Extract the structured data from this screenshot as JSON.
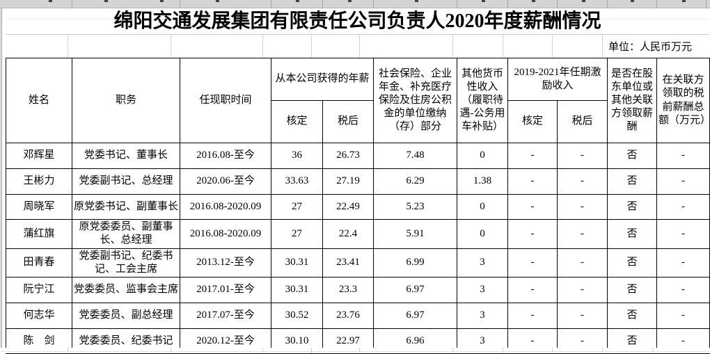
{
  "title": "绵阳交通发展集团有限责任公司负责人2020年度薪酬情况",
  "unit_note": "单位：人民币万元",
  "table": {
    "headers": {
      "name": "姓名",
      "position": "职务",
      "tenure": "任现职时间",
      "company_salary_group": "从本公司获得的年薪",
      "salary_approved": "核定",
      "salary_after_tax": "税后",
      "social_insurance": "社会保险、企业年金、补充医疗保险及住房公积金的单位缴纳（存）部分",
      "other_monetary_income": "其他货币性收入（履职待遇-公务用车补贴）",
      "term_incentive_group": "2019-2021年任期激励收入",
      "incentive_approved": "核定",
      "incentive_after_tax": "税后",
      "shareholder_remuneration": "是否在股东单位或其他关联方领取薪酬",
      "related_party_total": "在关联方领取的税前薪酬总额（万元）"
    },
    "rows": [
      [
        "邓辉星",
        "党委书记、董事长",
        "2016.08-至今",
        "36",
        "26.73",
        "7.48",
        "0",
        "-",
        "-",
        "否",
        "-"
      ],
      [
        "王彬力",
        "党委副书记、总经理",
        "2020.06-至今",
        "33.63",
        "27.19",
        "6.29",
        "1.38",
        "-",
        "-",
        "否",
        "-"
      ],
      [
        "周晓军",
        "原党委书记、副董事长",
        "2016.08-2020.09",
        "27",
        "22.49",
        "5.23",
        "0",
        "-",
        "-",
        "否",
        "-"
      ],
      [
        "蒲红旗",
        "原党委委员、副董事长、总经理",
        "2016.08-2020.09",
        "27",
        "22.4",
        "5.91",
        "0",
        "-",
        "-",
        "否",
        "-"
      ],
      [
        "田青春",
        "党委副书记、纪委书记、工会主席",
        "2013.12-至今",
        "30.31",
        "23.41",
        "6.99",
        "3",
        "-",
        "-",
        "否",
        "-"
      ],
      [
        "阮宁江",
        "党委委员、监事会主席",
        "2017.01-至今",
        "30.31",
        "23.3",
        "6.97",
        "3",
        "-",
        "-",
        "否",
        "-"
      ],
      [
        "何志华",
        "党委委员、副总经理",
        "2017.07-至今",
        "30.52",
        "23.76",
        "6.97",
        "3",
        "-",
        "-",
        "否",
        "-"
      ],
      [
        "陈　剑",
        "党委委员、纪委书记",
        "2020.12-至今",
        "30.10",
        "22.97",
        "6.96",
        "3",
        "-",
        "-",
        "否",
        "-"
      ]
    ]
  }
}
